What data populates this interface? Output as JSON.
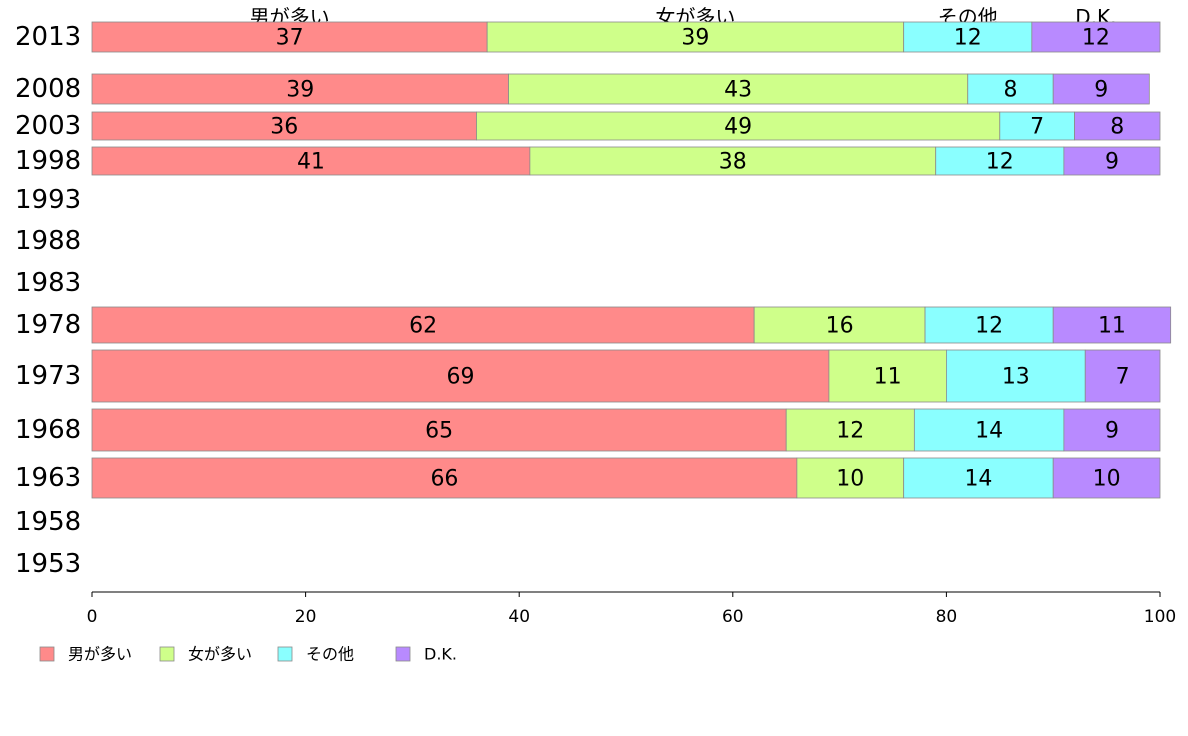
{
  "chart_data": {
    "type": "bar",
    "orientation": "horizontal",
    "stacked": true,
    "categories": [
      "2013",
      "2008",
      "2003",
      "1998",
      "1993",
      "1988",
      "1983",
      "1978",
      "1973",
      "1968",
      "1963",
      "1958",
      "1953"
    ],
    "series": [
      {
        "name": "男が多い",
        "color": "#ff8a8a",
        "values": [
          37,
          39,
          36,
          41,
          null,
          null,
          null,
          62,
          69,
          65,
          66,
          null,
          null
        ]
      },
      {
        "name": "女が多い",
        "color": "#cfff8a",
        "values": [
          39,
          43,
          49,
          38,
          null,
          null,
          null,
          16,
          11,
          12,
          10,
          null,
          null
        ]
      },
      {
        "name": "その他",
        "color": "#8affff",
        "values": [
          12,
          8,
          7,
          12,
          null,
          null,
          null,
          12,
          13,
          14,
          14,
          null,
          null
        ]
      },
      {
        "name": "D.K.",
        "color": "#b88aff",
        "values": [
          12,
          9,
          8,
          9,
          null,
          null,
          null,
          11,
          7,
          9,
          10,
          null,
          null
        ]
      }
    ],
    "xlim": [
      0,
      100
    ],
    "xticks": [
      "0",
      "20",
      "40",
      "60",
      "80",
      "100"
    ],
    "top_labels": [
      "男が多い",
      "女が多い",
      "その他",
      "D.K."
    ],
    "legend": [
      "男が多い",
      "女が多い",
      "その他",
      "D.K."
    ],
    "legend_position": "bottom-left",
    "grid": false
  }
}
